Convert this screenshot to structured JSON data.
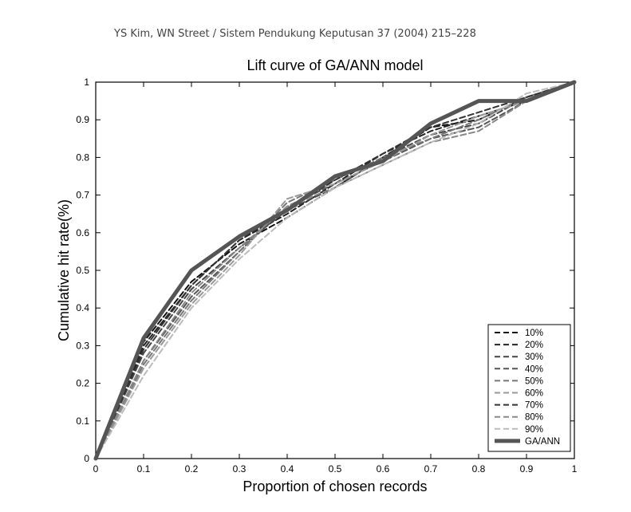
{
  "citation": "YS Kim, WN Street / Sistem Pendukung Keputusan 37 (2004) 215–228",
  "chart_data": {
    "type": "line",
    "title": "Lift curve of GA/ANN model",
    "xlabel": "Proportion of chosen records",
    "ylabel": "Cumulative hit rate(%)",
    "xlim": [
      0,
      1
    ],
    "ylim": [
      0,
      1
    ],
    "xticks": [
      "0",
      "0.1",
      "0.2",
      "0.3",
      "0.4",
      "0.5",
      "0.6",
      "0.7",
      "0.8",
      "0.9",
      "1"
    ],
    "yticks": [
      "0",
      "0.1",
      "0.2",
      "0.3",
      "0.4",
      "0.5",
      "0.6",
      "0.7",
      "0.8",
      "0.9",
      "1"
    ],
    "grid": false,
    "legend_position": "bottom-right",
    "series": [
      {
        "name": "10%",
        "color": "#111111",
        "dash": true,
        "width": 2,
        "x": [
          0,
          0.1,
          0.2,
          0.3,
          0.4,
          0.5,
          0.6,
          0.7,
          0.8,
          0.9,
          1
        ],
        "y": [
          0,
          0.31,
          0.47,
          0.57,
          0.64,
          0.72,
          0.8,
          0.88,
          0.9,
          0.96,
          1
        ]
      },
      {
        "name": "20%",
        "color": "#222222",
        "dash": true,
        "width": 2,
        "x": [
          0,
          0.1,
          0.2,
          0.3,
          0.4,
          0.5,
          0.6,
          0.7,
          0.8,
          0.9,
          1
        ],
        "y": [
          0,
          0.3,
          0.46,
          0.58,
          0.65,
          0.73,
          0.81,
          0.87,
          0.91,
          0.95,
          1
        ]
      },
      {
        "name": "30%",
        "color": "#444444",
        "dash": true,
        "width": 2,
        "x": [
          0,
          0.1,
          0.2,
          0.3,
          0.4,
          0.5,
          0.6,
          0.7,
          0.8,
          0.9,
          1
        ],
        "y": [
          0,
          0.28,
          0.45,
          0.56,
          0.66,
          0.72,
          0.8,
          0.86,
          0.89,
          0.96,
          1
        ]
      },
      {
        "name": "40%",
        "color": "#555555",
        "dash": true,
        "width": 2,
        "x": [
          0,
          0.1,
          0.2,
          0.3,
          0.4,
          0.5,
          0.6,
          0.7,
          0.8,
          0.9,
          1
        ],
        "y": [
          0,
          0.26,
          0.43,
          0.55,
          0.67,
          0.73,
          0.79,
          0.85,
          0.88,
          0.95,
          1
        ]
      },
      {
        "name": "50%",
        "color": "#777777",
        "dash": true,
        "width": 2,
        "x": [
          0,
          0.1,
          0.2,
          0.3,
          0.4,
          0.5,
          0.6,
          0.7,
          0.8,
          0.9,
          1
        ],
        "y": [
          0,
          0.25,
          0.42,
          0.55,
          0.68,
          0.74,
          0.8,
          0.85,
          0.9,
          0.96,
          1
        ]
      },
      {
        "name": "60%",
        "color": "#999999",
        "dash": true,
        "width": 2,
        "x": [
          0,
          0.1,
          0.2,
          0.3,
          0.4,
          0.5,
          0.6,
          0.7,
          0.8,
          0.9,
          1
        ],
        "y": [
          0,
          0.24,
          0.41,
          0.54,
          0.69,
          0.73,
          0.79,
          0.86,
          0.91,
          0.95,
          1
        ]
      },
      {
        "name": "70%",
        "color": "#333333",
        "dash": true,
        "width": 2,
        "x": [
          0,
          0.1,
          0.2,
          0.3,
          0.4,
          0.5,
          0.6,
          0.7,
          0.8,
          0.9,
          1
        ],
        "y": [
          0,
          0.29,
          0.46,
          0.58,
          0.66,
          0.74,
          0.81,
          0.88,
          0.92,
          0.96,
          1
        ]
      },
      {
        "name": "80%",
        "color": "#888888",
        "dash": true,
        "width": 2,
        "x": [
          0,
          0.1,
          0.2,
          0.3,
          0.4,
          0.5,
          0.6,
          0.7,
          0.8,
          0.9,
          1
        ],
        "y": [
          0,
          0.26,
          0.44,
          0.56,
          0.67,
          0.72,
          0.78,
          0.84,
          0.87,
          0.95,
          1
        ]
      },
      {
        "name": "90%",
        "color": "#bbbbbb",
        "dash": true,
        "width": 2,
        "x": [
          0,
          0.1,
          0.2,
          0.3,
          0.4,
          0.5,
          0.6,
          0.7,
          0.8,
          0.9,
          1
        ],
        "y": [
          0,
          0.22,
          0.4,
          0.53,
          0.64,
          0.72,
          0.78,
          0.84,
          0.89,
          0.97,
          1
        ]
      },
      {
        "name": "GA/ANN",
        "color": "#555555",
        "dash": false,
        "width": 5,
        "x": [
          0,
          0.1,
          0.2,
          0.3,
          0.4,
          0.5,
          0.6,
          0.7,
          0.8,
          0.9,
          1
        ],
        "y": [
          0,
          0.32,
          0.5,
          0.59,
          0.66,
          0.75,
          0.79,
          0.89,
          0.95,
          0.95,
          1
        ]
      }
    ]
  }
}
